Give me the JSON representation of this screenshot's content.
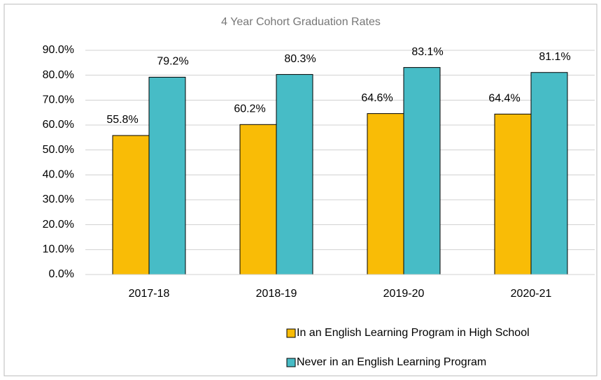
{
  "chart_data": {
    "type": "bar",
    "title": "4 Year Cohort Graduation Rates",
    "categories": [
      "2017-18",
      "2018-19",
      "2019-20",
      "2020-21"
    ],
    "series": [
      {
        "name": "In an English Learning Program in High School",
        "color": "#f9bc06",
        "values": [
          55.8,
          60.2,
          64.6,
          64.4
        ],
        "value_labels": [
          "55.8%",
          "60.2%",
          "64.6%",
          "64.4%"
        ]
      },
      {
        "name": "Never in an English Learning Program",
        "color": "#47bcc6",
        "values": [
          79.2,
          80.3,
          83.1,
          81.1
        ],
        "value_labels": [
          "79.2%",
          "80.3%",
          "83.1%",
          "81.1%"
        ]
      }
    ],
    "ylim": [
      0,
      90
    ],
    "yticks": [
      {
        "value": 0,
        "label": "0.0%"
      },
      {
        "value": 10,
        "label": "10.0%"
      },
      {
        "value": 20,
        "label": "20.0%"
      },
      {
        "value": 30,
        "label": "30.0%"
      },
      {
        "value": 40,
        "label": "40.0%"
      },
      {
        "value": 50,
        "label": "50.0%"
      },
      {
        "value": 60,
        "label": "60.0%"
      },
      {
        "value": 70,
        "label": "70.0%"
      },
      {
        "value": 80,
        "label": "80.0%"
      },
      {
        "value": 90,
        "label": "90.0%"
      }
    ],
    "grid": true,
    "legend": "bottom"
  }
}
